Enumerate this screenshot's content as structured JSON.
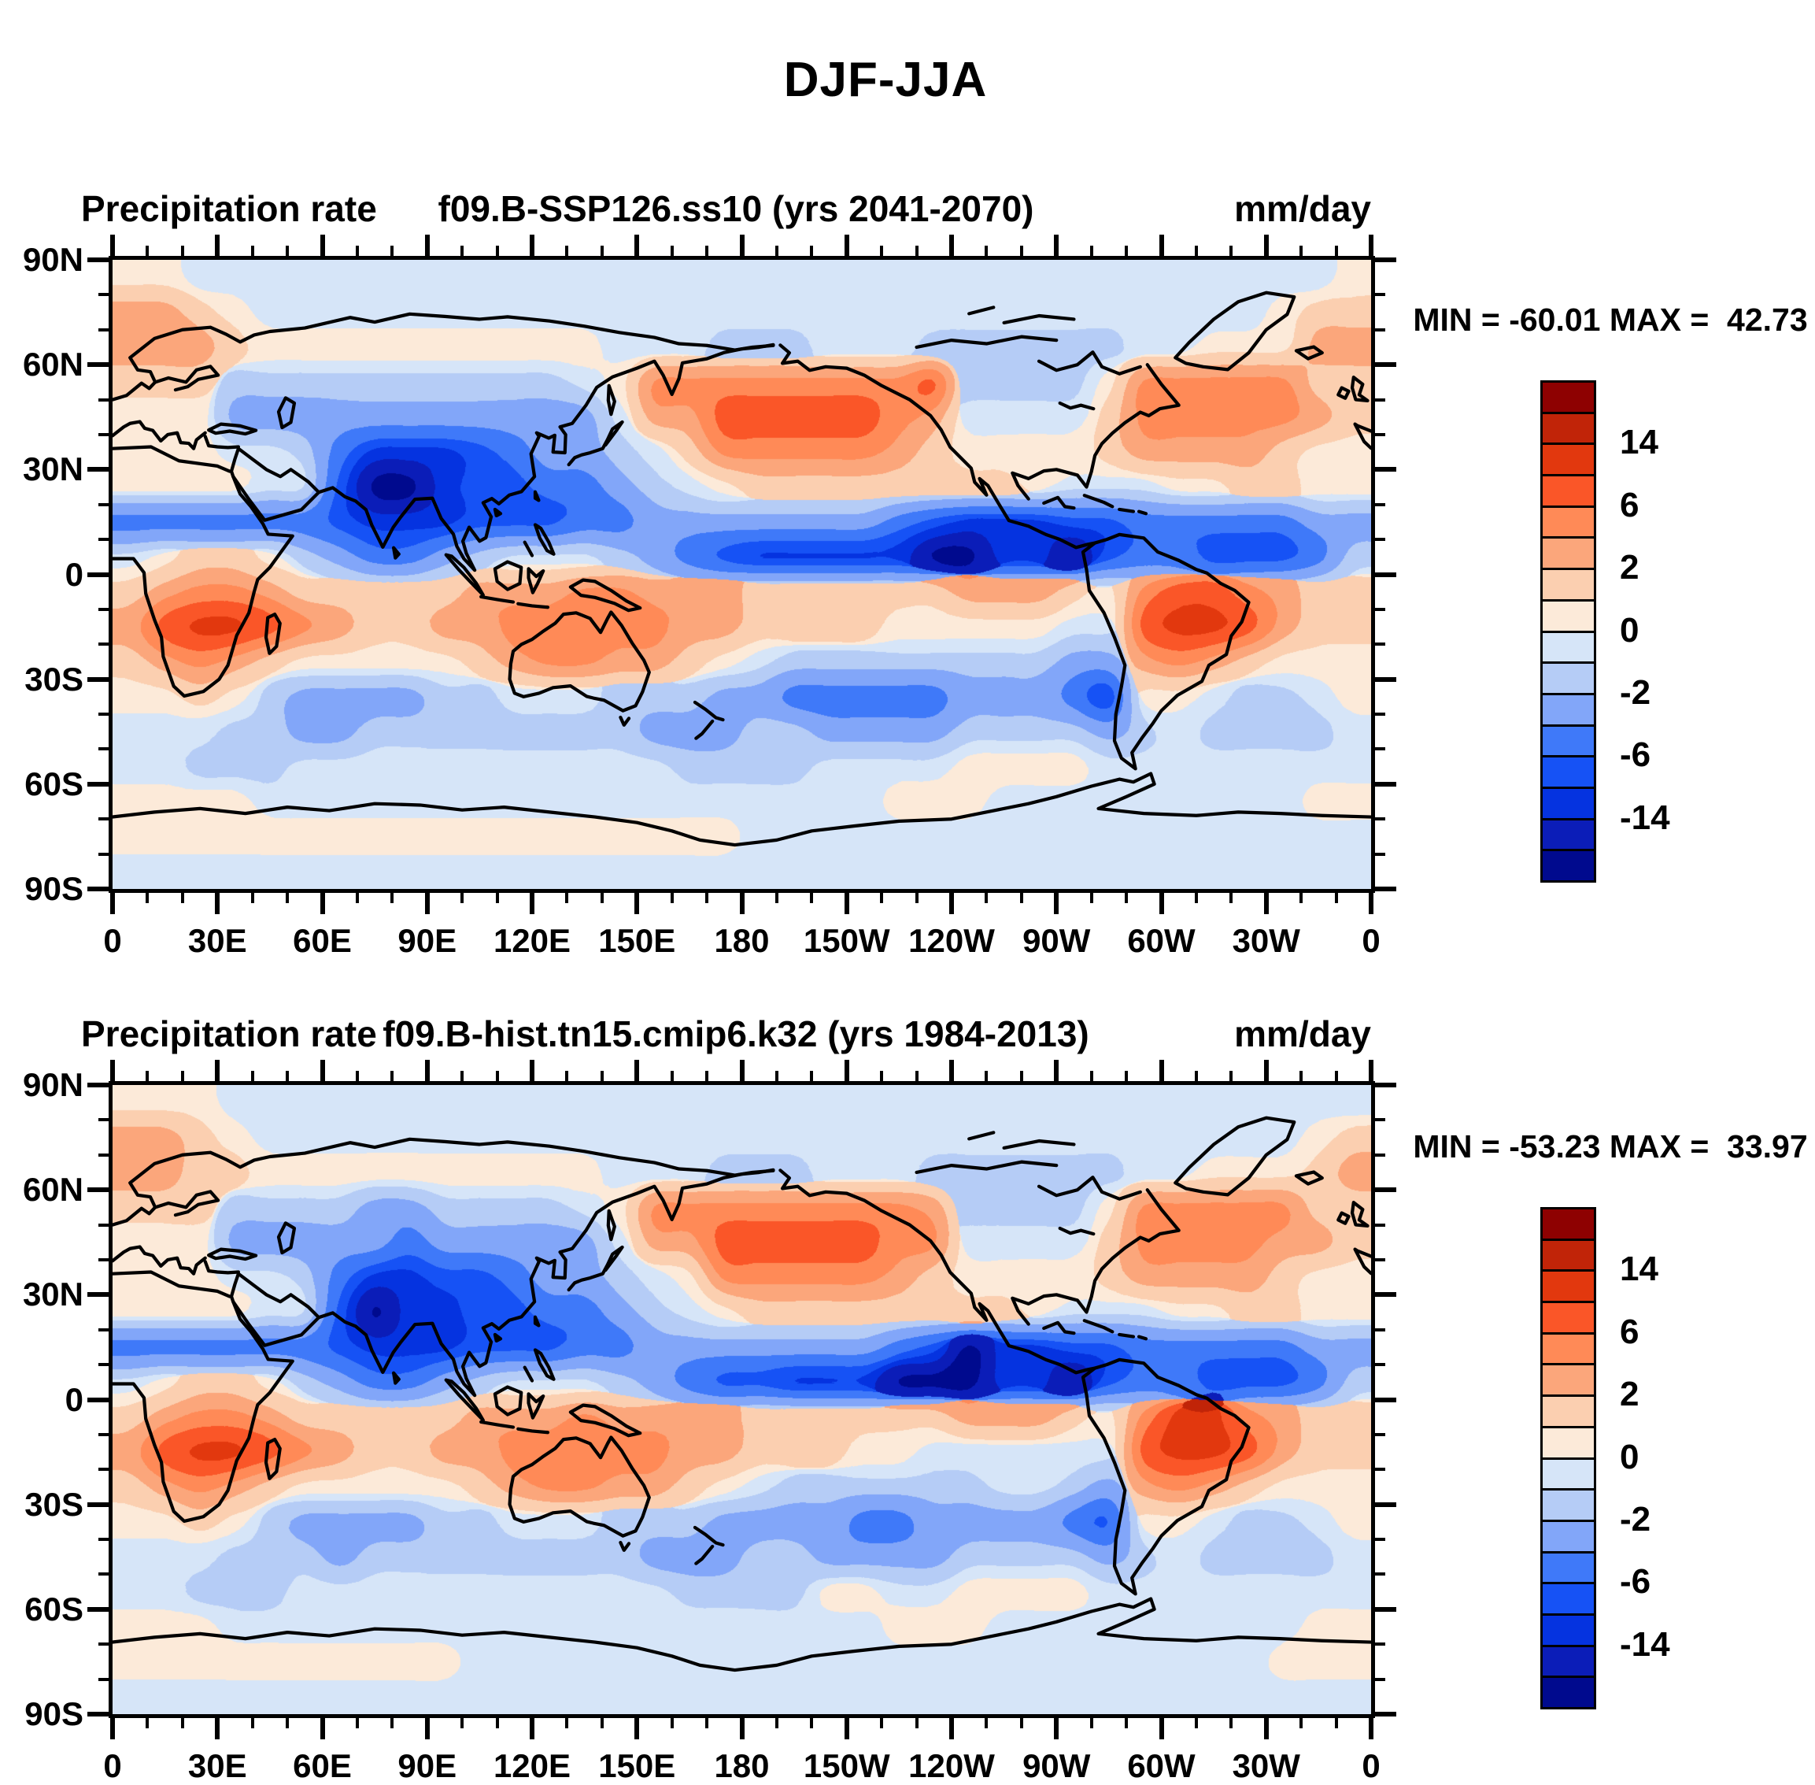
{
  "main_title": "DJF-JJA",
  "palette": [
    "#000a8e",
    "#0b1db8",
    "#0533e0",
    "#1652f5",
    "#3f79f9",
    "#82a6f9",
    "#b5ccf6",
    "#d6e5f8",
    "#fcead9",
    "#fbcfb0",
    "#fba67b",
    "#ff8a57",
    "#fa5628",
    "#e2380e",
    "#c12408",
    "#8e0101"
  ],
  "axis": {
    "lat_labels": [
      {
        "text": "90N",
        "lat": 90
      },
      {
        "text": "60N",
        "lat": 60
      },
      {
        "text": "30N",
        "lat": 30
      },
      {
        "text": "0",
        "lat": 0
      },
      {
        "text": "30S",
        "lat": -30
      },
      {
        "text": "60S",
        "lat": -60
      },
      {
        "text": "90S",
        "lat": -90
      }
    ],
    "lon_labels": [
      {
        "text": "0",
        "pos": 0
      },
      {
        "text": "30E",
        "pos": 30
      },
      {
        "text": "60E",
        "pos": 60
      },
      {
        "text": "90E",
        "pos": 90
      },
      {
        "text": "120E",
        "pos": 120
      },
      {
        "text": "150E",
        "pos": 150
      },
      {
        "text": "180",
        "pos": 180
      },
      {
        "text": "150W",
        "pos": 210
      },
      {
        "text": "120W",
        "pos": 240
      },
      {
        "text": "90W",
        "pos": 270
      },
      {
        "text": "60W",
        "pos": 300
      },
      {
        "text": "30W",
        "pos": 330
      },
      {
        "text": "0",
        "pos": 360
      }
    ]
  },
  "colorbar": {
    "labels": [
      "14",
      "6",
      "2",
      "0",
      "-2",
      "-6",
      "-14"
    ],
    "boundary_indices": [
      2,
      4,
      6,
      8,
      10,
      12,
      14
    ]
  },
  "panels": [
    {
      "left_title": "Precipitation rate",
      "center_title": "f09.B-SSP126.ss10 (yrs 2041-2070)",
      "right_title": "mm/day",
      "stats": "MIN = -60.01 MAX =  42.73"
    },
    {
      "left_title": "Precipitation rate",
      "center_title": "f09.B-hist.tn15.cmip6.k32 (yrs 1984-2013)",
      "right_title": "mm/day",
      "stats": "MIN = -53.23 MAX =  33.97"
    }
  ],
  "chart_data": [
    {
      "type": "filled-contour-map",
      "title": "f09.B-SSP126.ss10 (yrs 2041-2070)",
      "variable": "Precipitation rate",
      "season_difference": "DJF-JJA",
      "units": "mm/day",
      "min": -60.01,
      "max": 42.73,
      "lon_range": [
        0,
        360
      ],
      "lat_range": [
        90,
        -90
      ],
      "contour_levels": [
        -20,
        -14,
        -10,
        -6,
        -4,
        -2,
        -1,
        0,
        1,
        2,
        4,
        6,
        10,
        14,
        20
      ],
      "grid_rows": [
        "776666666666666666666666666666666667",
        "998766666666666666666666666666666788",
        "999877777777776665556665555556677799",
        "888555555555567aaaaaaaab55557aaaaa88",
        "77744444444444699bbbbba966668aaaaa98",
        "77766531112344568aaaaa98777789999877",
        "777766200122334567888888887666778877",
        "333333211122233444444432111223333344",
        "678875433456665432111110011023322235",
        "89aa988888999aa99988888899987abba988",
        "9bccba98899aaaaa9988887777766bccb988",
        "89a987777789aa9987655555555449a98777",
        "778754444556665554433333444317765567",
        "666554455555555444554444555545655556",
        "665556666666666655556666777766666666",
        "777766666666666666666677766666666677",
        "777777777777777777666666666666666666",
        "666666666666666666666666666666666666"
      ]
    },
    {
      "type": "filled-contour-map",
      "title": "f09.B-hist.tn15.cmip6.k32 (yrs 1984-2013)",
      "variable": "Precipitation rate",
      "season_difference": "DJF-JJA",
      "units": "mm/day",
      "min": -53.23,
      "max": 33.97,
      "lon_range": [
        0,
        360
      ],
      "lat_range": [
        90,
        -90
      ],
      "contour_levels": [
        -20,
        -14,
        -10,
        -6,
        -4,
        -2,
        -1,
        0,
        1,
        2,
        4,
        6,
        10,
        14,
        20
      ],
      "grid_rows": [
        "777666666666666666666666666666666666",
        "998766666666666666666666666666666678",
        "998877777777776665556665555556677789",
        "888555544555567aaaaaaaa955557aaaaa88",
        "77744444344444699bbbbbaa66668aaaa998",
        "77766531122344567aaaaa98777789999877",
        "777766201122334567888888887666778877",
        "333333211122233444444432011223333344",
        "678875433456665432211100011023322235",
        "89aa988888999a999988888899987acca988",
        "9bccba98899aaaaa9988877666666bccb988",
        "89a987777789aa9987655555566549a98777",
        "778754444556665554444334444327765567",
        "666555455555555444554444555545655556",
        "665556666666666655557766777766666666",
        "777666666666666666666677766666666677",
        "777777777766666666666666666666666777",
        "666666666666666666666666666666666666"
      ]
    }
  ]
}
